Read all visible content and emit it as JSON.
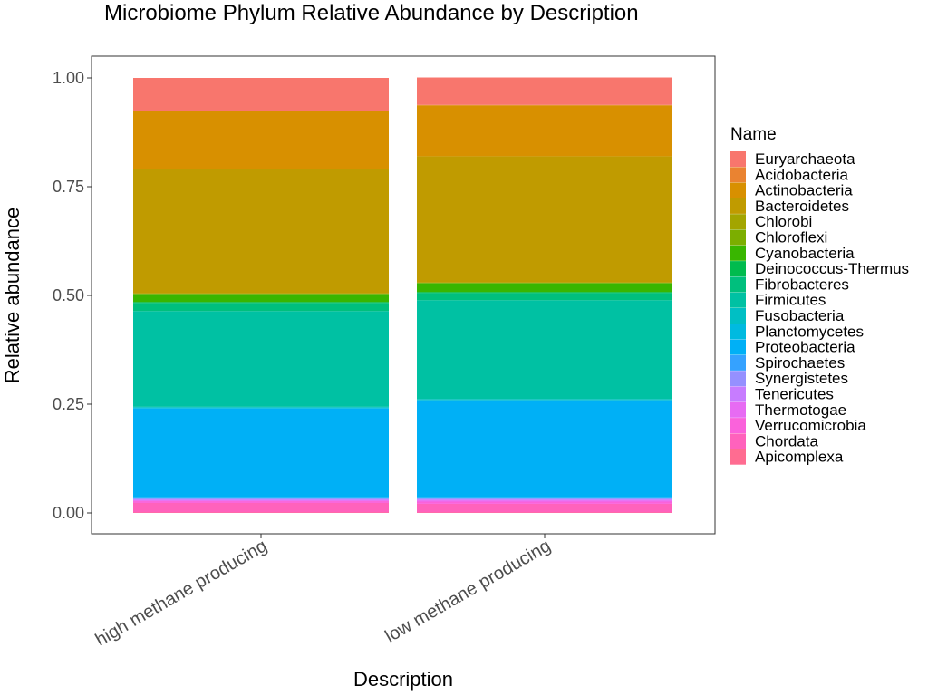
{
  "chart_data": {
    "type": "bar",
    "stacked": true,
    "title": "Microbiome Phylum Relative Abundance by Description",
    "xlabel": "Description",
    "ylabel": "Relative abundance",
    "ylim": [
      0,
      1
    ],
    "yticks": [
      "0.00",
      "0.25",
      "0.50",
      "0.75",
      "1.00"
    ],
    "grid": false,
    "legend": {
      "title": "Name",
      "position": "right"
    },
    "categories": [
      "high methane producing",
      "low methane producing"
    ],
    "series": [
      {
        "name": "Euryarchaeota",
        "color": "#F8766D",
        "values": [
          0.075,
          0.063
        ]
      },
      {
        "name": "Acidobacteria",
        "color": "#EA8331",
        "values": [
          0.001,
          0.001
        ]
      },
      {
        "name": "Actinobacteria",
        "color": "#D89000",
        "values": [
          0.134,
          0.117
        ]
      },
      {
        "name": "Bacteroidetes",
        "color": "#C09B00",
        "values": [
          0.285,
          0.29
        ]
      },
      {
        "name": "Chlorobi",
        "color": "#A3A500",
        "values": [
          0.001,
          0.001
        ]
      },
      {
        "name": "Chloroflexi",
        "color": "#7CAE00",
        "values": [
          0.001,
          0.001
        ]
      },
      {
        "name": "Cyanobacteria",
        "color": "#39B600",
        "values": [
          0.018,
          0.02
        ]
      },
      {
        "name": "Deinococcus-Thermus",
        "color": "#00BB4E",
        "values": [
          0.002,
          0.002
        ]
      },
      {
        "name": "Fibrobacteres",
        "color": "#00BF7D",
        "values": [
          0.019,
          0.017
        ]
      },
      {
        "name": "Firmicutes",
        "color": "#00C1A3",
        "values": [
          0.22,
          0.227
        ]
      },
      {
        "name": "Fusobacteria",
        "color": "#00BFC4",
        "values": [
          0.002,
          0.002
        ]
      },
      {
        "name": "Planctomycetes",
        "color": "#00BAE0",
        "values": [
          0.002,
          0.002
        ]
      },
      {
        "name": "Proteobacteria",
        "color": "#00B0F6",
        "values": [
          0.204,
          0.222
        ]
      },
      {
        "name": "Spirochaetes",
        "color": "#35A2FF",
        "values": [
          0.003,
          0.003
        ]
      },
      {
        "name": "Synergistetes",
        "color": "#9590FF",
        "values": [
          0.002,
          0.002
        ]
      },
      {
        "name": "Tenericutes",
        "color": "#C77CFF",
        "values": [
          0.002,
          0.002
        ]
      },
      {
        "name": "Thermotogae",
        "color": "#E76BF3",
        "values": [
          0.002,
          0.003
        ]
      },
      {
        "name": "Verrucomicrobia",
        "color": "#FA62DB",
        "values": [
          0.004,
          0.005
        ]
      },
      {
        "name": "Chordata",
        "color": "#FF62BC",
        "values": [
          0.022,
          0.02
        ]
      },
      {
        "name": "Apicomplexa",
        "color": "#FF6C91",
        "values": [
          0.001,
          0.001
        ]
      }
    ]
  }
}
